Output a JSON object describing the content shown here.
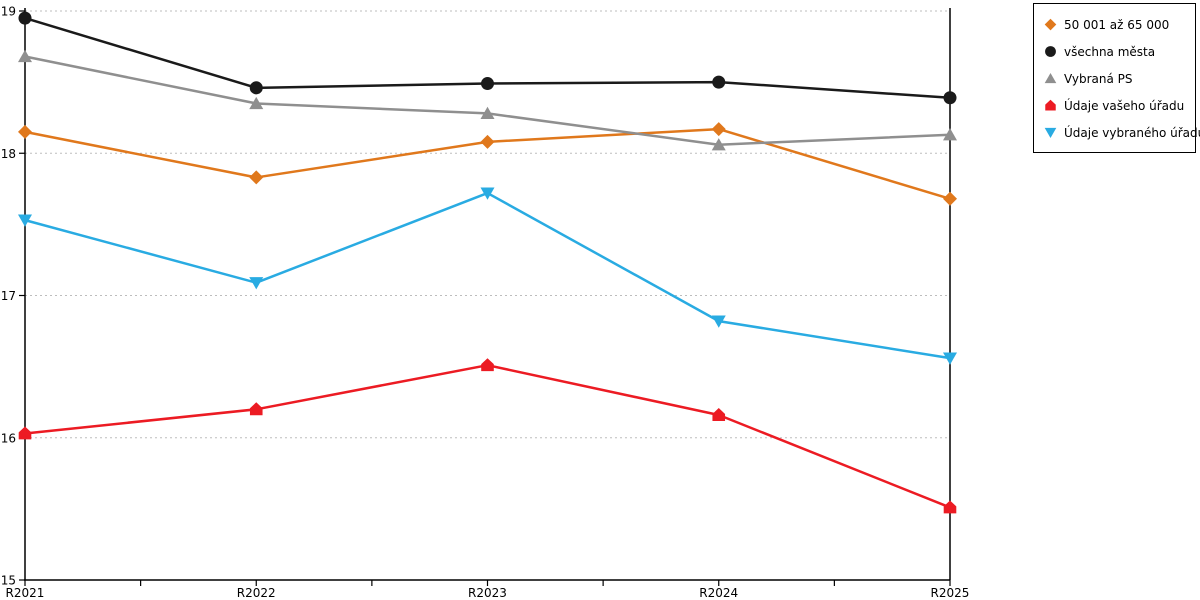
{
  "chart_data": {
    "type": "line",
    "categories": [
      "R2021",
      "R2022",
      "R2023",
      "R2024",
      "R2025"
    ],
    "ylim": [
      15,
      19
    ],
    "yticks": [
      15,
      16,
      17,
      18,
      19
    ],
    "grid": "horizontal-dotted",
    "legend_position": "top-right-outside",
    "series": [
      {
        "name": "50 001 až 65 000",
        "color": "#E0781C",
        "marker": "diamond",
        "values": [
          18.15,
          17.83,
          18.08,
          18.17,
          17.68
        ]
      },
      {
        "name": "všechna města",
        "color": "#1A1A1A",
        "marker": "circle",
        "values": [
          18.95,
          18.46,
          18.49,
          18.5,
          18.39
        ]
      },
      {
        "name": "Vybraná PS",
        "color": "#8F8F8F",
        "marker": "triangle-up",
        "values": [
          18.68,
          18.35,
          18.28,
          18.06,
          18.13
        ]
      },
      {
        "name": "Údaje vašeho úřadu",
        "color": "#EC1B23",
        "marker": "pentagon",
        "values": [
          16.03,
          16.2,
          16.51,
          16.16,
          15.51
        ]
      },
      {
        "name": "Údaje vybraného úřadu",
        "color": "#29ABE2",
        "marker": "triangle-down",
        "values": [
          17.53,
          17.09,
          17.72,
          16.82,
          16.56
        ]
      }
    ]
  },
  "colors": {
    "background": "#FFFFFF",
    "axis": "#000000",
    "gridline": "#BDBDBD",
    "legend_border": "#000000",
    "tick_label": "#000000"
  }
}
